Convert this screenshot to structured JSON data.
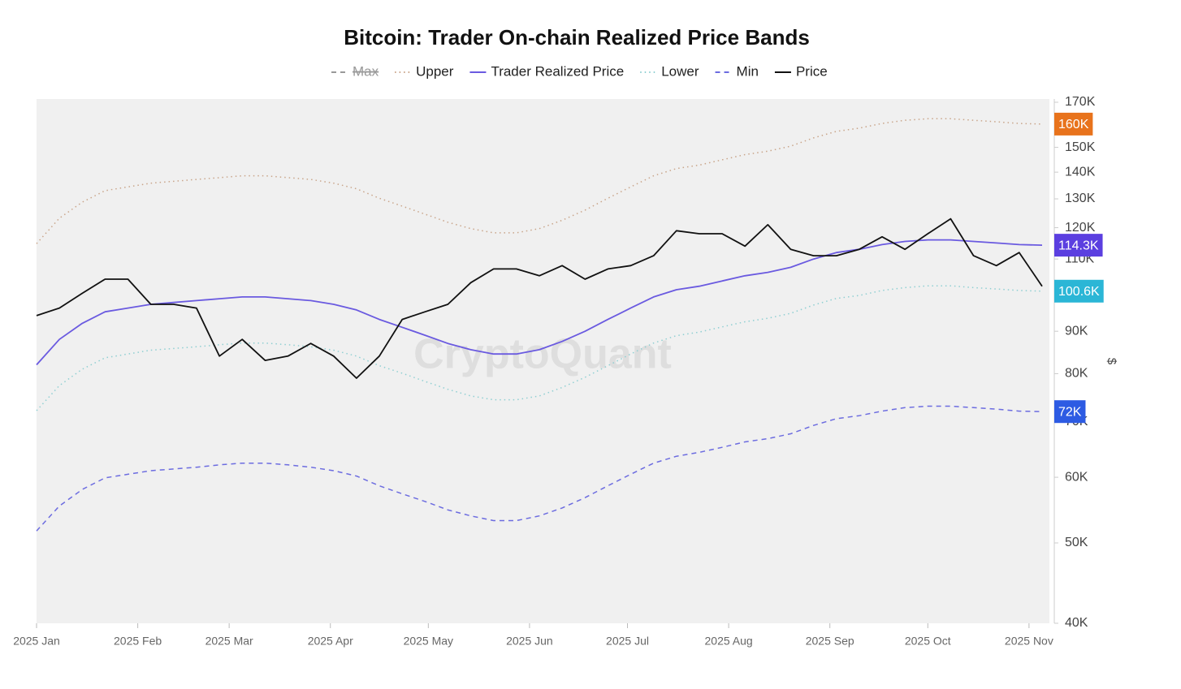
{
  "chart_data": {
    "type": "line",
    "title": "Bitcoin: Trader On-chain Realized Price Bands",
    "y_label": "$",
    "watermark": "CryptoQuant",
    "log_scale": true,
    "legend": "top",
    "xlim": [
      0,
      310
    ],
    "xticks": [
      {
        "value": 0,
        "label": "2025 Jan"
      },
      {
        "value": 31,
        "label": "2025 Feb"
      },
      {
        "value": 59,
        "label": "2025 Mar"
      },
      {
        "value": 90,
        "label": "2025 Apr"
      },
      {
        "value": 120,
        "label": "2025 May"
      },
      {
        "value": 151,
        "label": "2025 Jun"
      },
      {
        "value": 181,
        "label": "2025 Jul"
      },
      {
        "value": 212,
        "label": "2025 Aug"
      },
      {
        "value": 243,
        "label": "2025 Sep"
      },
      {
        "value": 273,
        "label": "2025 Oct"
      },
      {
        "value": 304,
        "label": "2025 Nov"
      }
    ],
    "ylim": [
      40000,
      170000
    ],
    "yticks": [
      {
        "value": 40000,
        "label": "40K"
      },
      {
        "value": 50000,
        "label": "50K"
      },
      {
        "value": 60000,
        "label": "60K"
      },
      {
        "value": 70000,
        "label": "70K"
      },
      {
        "value": 80000,
        "label": "80K"
      },
      {
        "value": 90000,
        "label": "90K"
      },
      {
        "value": 110000,
        "label": "110K"
      },
      {
        "value": 120000,
        "label": "120K"
      },
      {
        "value": 130000,
        "label": "130K"
      },
      {
        "value": 140000,
        "label": "140K"
      },
      {
        "value": 150000,
        "label": "150K"
      },
      {
        "value": 170000,
        "label": "170K"
      }
    ],
    "x": [
      0,
      7,
      14,
      21,
      28,
      35,
      42,
      49,
      56,
      63,
      70,
      77,
      84,
      91,
      98,
      105,
      112,
      119,
      126,
      133,
      140,
      147,
      154,
      161,
      168,
      175,
      182,
      189,
      196,
      203,
      210,
      217,
      224,
      231,
      238,
      245,
      252,
      259,
      266,
      273,
      280,
      287,
      294,
      301,
      308
    ],
    "series": [
      {
        "name": "Max",
        "color": "#999999",
        "dash": "dashed",
        "hidden": true
      },
      {
        "name": "Upper",
        "color": "#c9a58a",
        "dash": "dotted",
        "label_color": "#e8731c",
        "values": [
          114800,
          123200,
          128800,
          133000,
          134400,
          135800,
          136500,
          137200,
          137900,
          138600,
          138600,
          137900,
          137200,
          135800,
          133700,
          130200,
          127400,
          124600,
          121800,
          119700,
          118300,
          118300,
          119700,
          122500,
          126000,
          130200,
          134400,
          138600,
          141400,
          142800,
          144900,
          147000,
          148400,
          150500,
          154000,
          156800,
          158200,
          160300,
          161700,
          162400,
          162400,
          161700,
          161000,
          160300,
          160000
        ],
        "value_labels": [
          null,
          null,
          null,
          null,
          null,
          null,
          null,
          null,
          null,
          null,
          null,
          null,
          null,
          null,
          null,
          null,
          null,
          null,
          null,
          null,
          null,
          null,
          null,
          null,
          null,
          null,
          null,
          null,
          null,
          null,
          null,
          null,
          null,
          null,
          null,
          null,
          null,
          null,
          null,
          null,
          null,
          null,
          null,
          null,
          "160K"
        ]
      },
      {
        "name": "Trader Realized Price",
        "color": "#6a5ae0",
        "dash": "solid",
        "label_color": "#5b3fe0",
        "values": [
          82000,
          88000,
          92000,
          95000,
          96000,
          97000,
          97500,
          98000,
          98500,
          99000,
          99000,
          98500,
          98000,
          97000,
          95500,
          93000,
          91000,
          89000,
          87000,
          85500,
          84500,
          84500,
          85500,
          87500,
          90000,
          93000,
          96000,
          99000,
          101000,
          102000,
          103500,
          105000,
          106000,
          107500,
          110000,
          112000,
          113000,
          114500,
          115500,
          116000,
          116000,
          115500,
          115000,
          114500,
          114300
        ],
        "value_labels": [
          null,
          null,
          null,
          null,
          null,
          null,
          null,
          null,
          null,
          null,
          null,
          null,
          null,
          null,
          null,
          null,
          null,
          null,
          null,
          null,
          null,
          null,
          null,
          null,
          null,
          null,
          null,
          null,
          null,
          null,
          null,
          null,
          null,
          null,
          null,
          null,
          null,
          null,
          null,
          null,
          null,
          null,
          null,
          null,
          "114.3K"
        ]
      },
      {
        "name": "Lower",
        "color": "#8fcfd2",
        "dash": "dotted",
        "label_color": "#2bb6d6",
        "values": [
          72200,
          77400,
          81000,
          83600,
          84500,
          85400,
          85800,
          86200,
          86700,
          87100,
          87100,
          86700,
          86200,
          85400,
          84000,
          81800,
          80100,
          78300,
          76600,
          75200,
          74400,
          74400,
          75200,
          77000,
          79200,
          81800,
          84500,
          87100,
          88900,
          89800,
          91100,
          92400,
          93300,
          94600,
          96800,
          98600,
          99400,
          100800,
          101600,
          102100,
          102100,
          101600,
          101200,
          100800,
          100600
        ],
        "value_labels": [
          null,
          null,
          null,
          null,
          null,
          null,
          null,
          null,
          null,
          null,
          null,
          null,
          null,
          null,
          null,
          null,
          null,
          null,
          null,
          null,
          null,
          null,
          null,
          null,
          null,
          null,
          null,
          null,
          null,
          null,
          null,
          null,
          null,
          null,
          null,
          null,
          null,
          null,
          null,
          null,
          null,
          null,
          null,
          null,
          "100.6K"
        ]
      },
      {
        "name": "Min",
        "color": "#6c6ce0",
        "dash": "dashed",
        "label_color": "#2d5be3",
        "values": [
          51700,
          55400,
          58000,
          59900,
          60500,
          61100,
          61400,
          61700,
          62100,
          62400,
          62400,
          62100,
          61700,
          61100,
          60200,
          58600,
          57300,
          56100,
          54800,
          53900,
          53200,
          53200,
          53900,
          55100,
          56700,
          58600,
          60500,
          62400,
          63600,
          64300,
          65200,
          66200,
          66800,
          67700,
          69300,
          70600,
          71200,
          72100,
          72800,
          73100,
          73100,
          72800,
          72500,
          72100,
          72000
        ],
        "value_labels": [
          null,
          null,
          null,
          null,
          null,
          null,
          null,
          null,
          null,
          null,
          null,
          null,
          null,
          null,
          null,
          null,
          null,
          null,
          null,
          null,
          null,
          null,
          null,
          null,
          null,
          null,
          null,
          null,
          null,
          null,
          null,
          null,
          null,
          null,
          null,
          null,
          null,
          null,
          null,
          null,
          null,
          null,
          null,
          null,
          "72K"
        ]
      },
      {
        "name": "Price",
        "color": "#111111",
        "dash": "solid",
        "values": [
          94000,
          96000,
          100000,
          104000,
          104000,
          97000,
          97000,
          96000,
          84000,
          88000,
          83000,
          84000,
          87000,
          84000,
          79000,
          84000,
          93000,
          95000,
          97000,
          103000,
          107000,
          107000,
          105000,
          108000,
          104000,
          107000,
          108000,
          111000,
          119000,
          118000,
          118000,
          114000,
          121000,
          113000,
          111000,
          111000,
          113000,
          117000,
          113000,
          118000,
          123000,
          111000,
          108000,
          112000,
          102000
        ]
      }
    ]
  }
}
